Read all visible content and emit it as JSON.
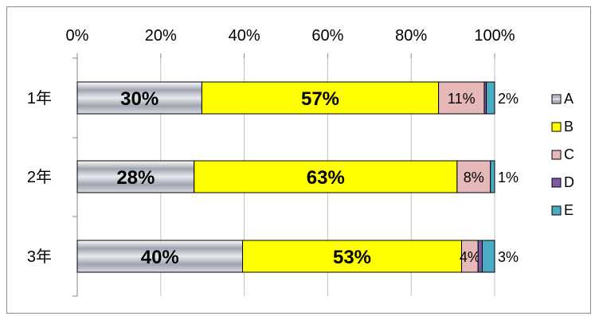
{
  "chart_data": {
    "type": "bar",
    "orientation": "horizontal",
    "stacked": "percent",
    "categories": [
      "1年",
      "2年",
      "3年"
    ],
    "series": [
      {
        "name": "A",
        "values": [
          30,
          28,
          40
        ],
        "labels": [
          "30%",
          "28%",
          "40%"
        ],
        "color": "#b8bcc8"
      },
      {
        "name": "B",
        "values": [
          57,
          63,
          53
        ],
        "labels": [
          "57%",
          "63%",
          "53%"
        ],
        "color": "#ffff00"
      },
      {
        "name": "C",
        "values": [
          11,
          8,
          4
        ],
        "labels": [
          "11%",
          "8%",
          "4%"
        ],
        "color": "#e6b9b8"
      },
      {
        "name": "D",
        "values": [
          0.5,
          0,
          1
        ],
        "labels": [
          "",
          "",
          ""
        ],
        "color": "#7f5aa2"
      },
      {
        "name": "E",
        "values": [
          2,
          1,
          3
        ],
        "labels": [
          "2%",
          "1%",
          "3%"
        ],
        "color": "#4bacc6"
      }
    ],
    "x_ticks": [
      "0%",
      "20%",
      "40%",
      "60%",
      "80%",
      "100%"
    ],
    "xlim": [
      0,
      100
    ],
    "axis_position": "top",
    "grid": true,
    "legend_position": "right"
  }
}
